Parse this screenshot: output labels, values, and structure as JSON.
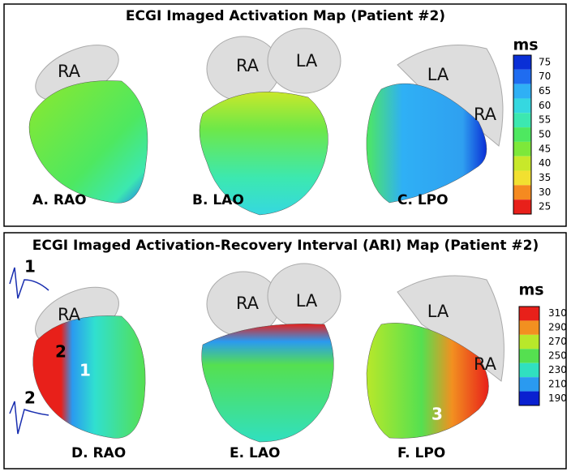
{
  "panels": [
    {
      "title": "ECGI Imaged Activation Map (Patient #2)",
      "unit": "ms",
      "colorbar": {
        "ticks": [
          75,
          70,
          65,
          60,
          55,
          50,
          45,
          40,
          35,
          30,
          25
        ],
        "colors": [
          "#0a2fd6",
          "#1f6cf0",
          "#2fb0f5",
          "#35d8e0",
          "#3ce8b0",
          "#4ee860",
          "#7de83a",
          "#c8e82a",
          "#f2e030",
          "#f58a20",
          "#e8201a"
        ]
      },
      "views": [
        {
          "label": "A. RAO",
          "atria": [
            "RA"
          ]
        },
        {
          "label": "B. LAO",
          "atria": [
            "RA",
            "LA"
          ]
        },
        {
          "label": "C. LPO",
          "atria": [
            "LA",
            "RA"
          ]
        }
      ]
    },
    {
      "title": "ECGI Imaged Activation-Recovery Interval (ARI) Map (Patient #2)",
      "unit": "ms",
      "colorbar": {
        "ticks": [
          310,
          290,
          270,
          250,
          230,
          210,
          190
        ],
        "colors": [
          "#e8201a",
          "#f29020",
          "#b8e82a",
          "#55e050",
          "#30e0c0",
          "#2a9af0",
          "#0a20d0"
        ]
      },
      "views": [
        {
          "label": "D. RAO",
          "atria": [
            "RA"
          ]
        },
        {
          "label": "E. LAO",
          "atria": [
            "RA",
            "LA"
          ]
        },
        {
          "label": "F. LPO",
          "atria": [
            "LA",
            "RA"
          ]
        }
      ],
      "markers": [
        "1",
        "2",
        "1",
        "2",
        "3"
      ]
    }
  ]
}
